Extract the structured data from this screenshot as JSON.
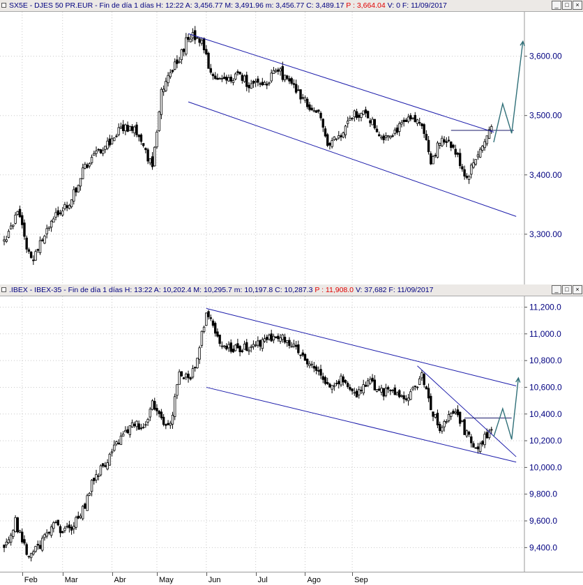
{
  "panes": {
    "top": {
      "header_pre": "SX5E - DJES 50 PR.EUR - Fin de día 1 días  H: 12:22  A: 3,456.77  M: 3,491.96  m: 3,456.77  C: 3,489.17  ",
      "header_red": "P : 3,664.04",
      "header_post": "  V: 0  F: 11/09/2017",
      "price_labels": [
        "3,600.00",
        "3,500.00",
        "3,400.00",
        "3,300.00"
      ]
    },
    "bottom": {
      "header_pre": ".IBEX - IBEX-35 - Fin de día 1 días  H: 13:22  A: 10,202.4  M: 10,295.7  m: 10,197.8  C: 10,287.3  ",
      "header_red": "P : 11,908.0",
      "header_post": "  V: 37,682  F: 11/09/2017",
      "price_labels": [
        "11,200.0",
        "11,000.0",
        "10,800.0",
        "10,600.0",
        "10,400.0",
        "10,200.0",
        "10,000.0",
        "9,800.0",
        "9,600.0",
        "9,400.0"
      ]
    }
  },
  "window_buttons": [
    "_",
    "□",
    "×"
  ],
  "months": [
    "Feb",
    "Mar",
    "Abr",
    "May",
    "Jun",
    "Jul",
    "Ago",
    "Sep"
  ],
  "colors": {
    "channel": "#1a1aaa",
    "projection": "#2f6f78",
    "candle": "#000000",
    "grid": "#c8c8c8",
    "axis_text": "#000080",
    "header_red": "#e00000"
  },
  "chart_data": [
    {
      "type": "candlestick",
      "symbol": "SX5E",
      "ylim": [
        3220,
        3670
      ],
      "y_ticks": [
        3300,
        3400,
        3500,
        3600
      ],
      "x_months": [
        "Feb",
        "Mar",
        "Abr",
        "May",
        "Jun",
        "Jul",
        "Ago",
        "Sep"
      ],
      "anchors": [
        [
          0,
          3290
        ],
        [
          6,
          3335
        ],
        [
          12,
          3255
        ],
        [
          18,
          3300
        ],
        [
          24,
          3335
        ],
        [
          30,
          3360
        ],
        [
          36,
          3415
        ],
        [
          42,
          3440
        ],
        [
          48,
          3460
        ],
        [
          52,
          3480
        ],
        [
          58,
          3480
        ],
        [
          62,
          3445
        ],
        [
          66,
          3415
        ],
        [
          70,
          3545
        ],
        [
          74,
          3570
        ],
        [
          78,
          3595
        ],
        [
          82,
          3635
        ],
        [
          87,
          3630
        ],
        [
          92,
          3575
        ],
        [
          98,
          3555
        ],
        [
          104,
          3570
        ],
        [
          110,
          3550
        ],
        [
          116,
          3555
        ],
        [
          122,
          3575
        ],
        [
          128,
          3550
        ],
        [
          134,
          3525
        ],
        [
          140,
          3500
        ],
        [
          144,
          3455
        ],
        [
          150,
          3465
        ],
        [
          156,
          3505
        ],
        [
          162,
          3500
        ],
        [
          168,
          3465
        ],
        [
          174,
          3475
        ],
        [
          180,
          3490
        ],
        [
          186,
          3490
        ],
        [
          190,
          3425
        ],
        [
          194,
          3455
        ],
        [
          198,
          3460
        ],
        [
          202,
          3430
        ],
        [
          206,
          3395
        ],
        [
          210,
          3430
        ],
        [
          214,
          3455
        ],
        [
          217,
          3488
        ]
      ],
      "annotations": {
        "channel_upper": [
          [
            82,
            3638
          ],
          [
            218,
            3472
          ]
        ],
        "channel_lower": [
          [
            82,
            3523
          ],
          [
            228,
            3330
          ]
        ],
        "resistance": [
          [
            199,
            3475
          ],
          [
            227,
            3475
          ]
        ],
        "projection": [
          [
            218,
            3455
          ],
          [
            222,
            3520
          ],
          [
            226,
            3470
          ],
          [
            231,
            3625
          ]
        ]
      }
    },
    {
      "type": "candlestick",
      "symbol": ".IBEX",
      "ylim": [
        9240,
        11260
      ],
      "y_ticks": [
        9400,
        9600,
        9800,
        10000,
        10200,
        10400,
        10600,
        10800,
        11000,
        11200
      ],
      "x_months": [
        "Feb",
        "Mar",
        "Abr",
        "May",
        "Jun",
        "Jul",
        "Ago",
        "Sep"
      ],
      "anchors": [
        [
          0,
          9400
        ],
        [
          5,
          9590
        ],
        [
          10,
          9360
        ],
        [
          16,
          9420
        ],
        [
          22,
          9560
        ],
        [
          28,
          9530
        ],
        [
          34,
          9630
        ],
        [
          40,
          9920
        ],
        [
          46,
          10060
        ],
        [
          52,
          10220
        ],
        [
          58,
          10330
        ],
        [
          62,
          10300
        ],
        [
          66,
          10480
        ],
        [
          70,
          10370
        ],
        [
          74,
          10300
        ],
        [
          78,
          10700
        ],
        [
          82,
          10660
        ],
        [
          86,
          10800
        ],
        [
          90,
          11170
        ],
        [
          94,
          11020
        ],
        [
          98,
          10900
        ],
        [
          104,
          10880
        ],
        [
          110,
          10920
        ],
        [
          116,
          10950
        ],
        [
          120,
          10990
        ],
        [
          126,
          10950
        ],
        [
          132,
          10830
        ],
        [
          138,
          10760
        ],
        [
          144,
          10620
        ],
        [
          150,
          10650
        ],
        [
          156,
          10540
        ],
        [
          162,
          10660
        ],
        [
          168,
          10560
        ],
        [
          174,
          10580
        ],
        [
          180,
          10500
        ],
        [
          186,
          10700
        ],
        [
          190,
          10460
        ],
        [
          194,
          10280
        ],
        [
          198,
          10370
        ],
        [
          202,
          10400
        ],
        [
          206,
          10240
        ],
        [
          210,
          10150
        ],
        [
          214,
          10220
        ],
        [
          217,
          10287
        ]
      ],
      "annotations": {
        "channel_upper": [
          [
            90,
            11190
          ],
          [
            228,
            10610
          ]
        ],
        "channel_lower": [
          [
            90,
            10600
          ],
          [
            228,
            10040
          ]
        ],
        "trendline": [
          [
            184,
            10760
          ],
          [
            228,
            10080
          ]
        ],
        "resistance": [
          [
            205,
            10370
          ],
          [
            226,
            10370
          ]
        ],
        "projection": [
          [
            218,
            10230
          ],
          [
            222,
            10440
          ],
          [
            226,
            10210
          ],
          [
            229,
            10670
          ]
        ]
      }
    }
  ]
}
